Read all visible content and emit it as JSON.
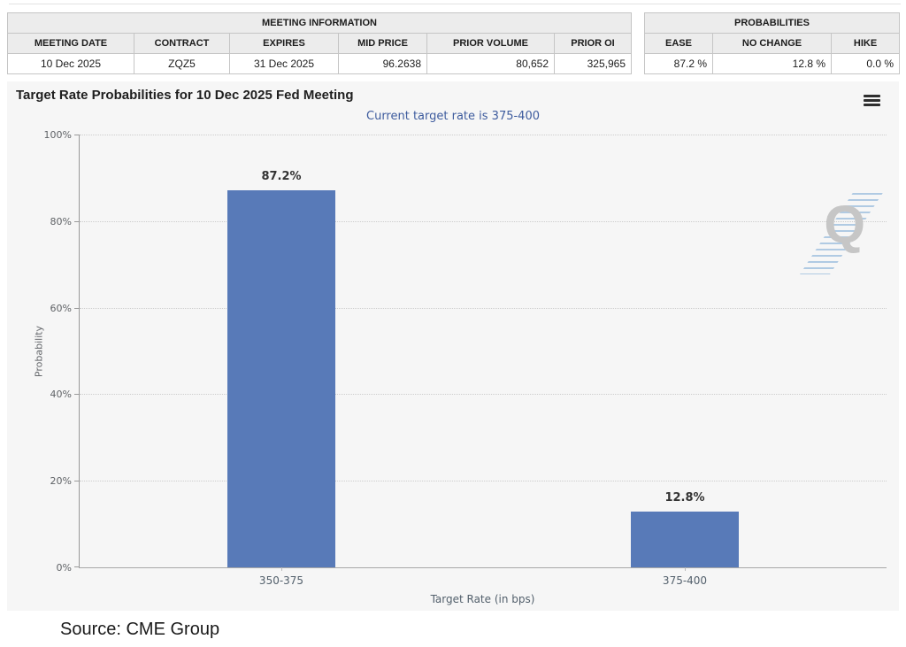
{
  "meeting_info": {
    "title": "MEETING INFORMATION",
    "columns": [
      "MEETING DATE",
      "CONTRACT",
      "EXPIRES",
      "MID PRICE",
      "PRIOR VOLUME",
      "PRIOR OI"
    ],
    "row": [
      "10 Dec 2025",
      "ZQZ5",
      "31 Dec 2025",
      "96.2638",
      "80,652",
      "325,965"
    ]
  },
  "probabilities": {
    "title": "PROBABILITIES",
    "columns": [
      "EASE",
      "NO CHANGE",
      "HIKE"
    ],
    "row": [
      "87.2 %",
      "12.8 %",
      "0.0 %"
    ]
  },
  "chart_data": {
    "type": "bar",
    "title": "Target Rate Probabilities for 10 Dec 2025 Fed Meeting",
    "subtitle": "Current target rate is 375-400",
    "categories": [
      "350-375",
      "375-400"
    ],
    "values": [
      87.2,
      12.8
    ],
    "value_labels": [
      "87.2%",
      "12.8%"
    ],
    "xlabel": "Target Rate (in bps)",
    "ylabel": "Probability",
    "ylim": [
      0,
      100
    ],
    "yticks": [
      "0%",
      "20%",
      "40%",
      "60%",
      "80%",
      "100%"
    ],
    "grid": "horizontal dotted",
    "legend": "none",
    "bar_color": "#587ab8",
    "background_color": "#f6f6f6",
    "subtitle_color": "#3e5c9e"
  },
  "icons": {
    "menu": "hamburger-menu-icon",
    "watermark_letter": "Q"
  },
  "footer": {
    "source": "Source: CME Group"
  }
}
